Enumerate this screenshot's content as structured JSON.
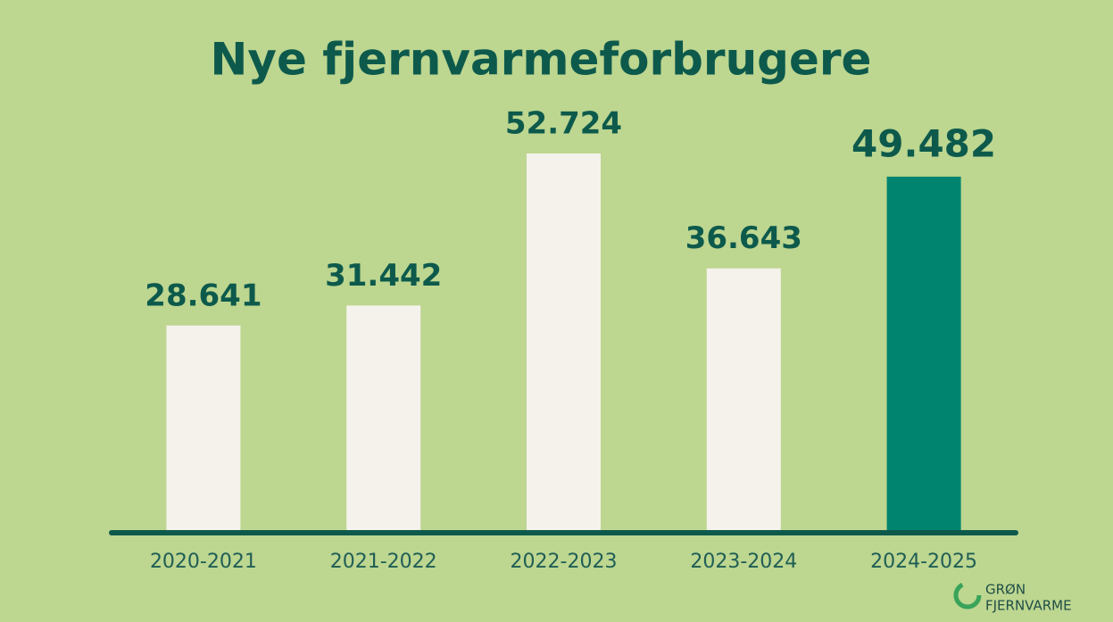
{
  "chart_data": {
    "type": "bar",
    "title": "Nye fjernvarmeforbrugere",
    "categories": [
      "2020-2021",
      "2021-2022",
      "2022-2023",
      "2023-2024",
      "2024-2025"
    ],
    "values": [
      28641,
      31442,
      52724,
      36643,
      49482
    ],
    "value_labels": [
      "28.641",
      "31.442",
      "52.724",
      "36.643",
      "49.482"
    ],
    "colors": [
      "#f5f2ec",
      "#f5f2ec",
      "#f5f2ec",
      "#f5f2ec",
      "#00846f"
    ]
  },
  "logo": {
    "line1": "GRØN",
    "line2": "FJERNVARME"
  }
}
